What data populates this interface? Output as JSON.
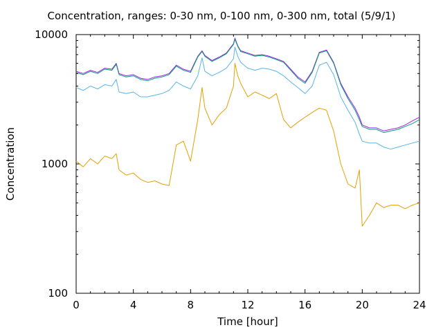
{
  "chart_data": {
    "type": "line",
    "title": "Concentration, ranges: 0-30 nm, 0-100 nm, 0-300 nm, total (5/9/1)",
    "xlabel": "Time [hour]",
    "ylabel": "Concentration",
    "xlim": [
      0,
      24
    ],
    "ylim": [
      100,
      10000
    ],
    "yscale": "log",
    "xticks": [
      "0",
      "4",
      "8",
      "12",
      "16",
      "20",
      "24"
    ],
    "yticks": [
      "100",
      "1000",
      "10000"
    ],
    "grid": false,
    "legend": "none",
    "x": [
      0,
      0.5,
      1,
      1.5,
      2,
      2.5,
      2.8,
      3,
      3.5,
      4,
      4.5,
      5,
      5.5,
      6,
      6.5,
      7,
      7.5,
      8,
      8.5,
      8.8,
      9,
      9.5,
      10,
      10.5,
      11,
      11.1,
      11.3,
      11.5,
      12,
      12.5,
      13,
      13.5,
      14,
      14.5,
      15,
      15.5,
      16,
      16.5,
      17,
      17.5,
      18,
      18.5,
      19,
      19.5,
      19.8,
      20,
      20.5,
      21,
      21.5,
      22,
      22.5,
      23,
      23.5,
      24
    ],
    "series": [
      {
        "color": "#a020f0",
        "values": [
          5200,
          5000,
          5300,
          5100,
          5500,
          5400,
          6000,
          5000,
          4800,
          4900,
          4600,
          4500,
          4700,
          4800,
          5000,
          5800,
          5400,
          5200,
          6800,
          7500,
          6900,
          6300,
          6700,
          7200,
          8500,
          9400,
          8200,
          7500,
          7200,
          6900,
          7000,
          6800,
          6500,
          6200,
          5400,
          4700,
          4300,
          5200,
          7300,
          7600,
          6100,
          4200,
          3300,
          2700,
          2300,
          2000,
          1900,
          1900,
          1800,
          1850,
          1900,
          2000,
          2150,
          2300
        ]
      },
      {
        "color": "#009e73",
        "values": [
          5100,
          4900,
          5200,
          5000,
          5400,
          5300,
          5900,
          4900,
          4700,
          4800,
          4500,
          4400,
          4600,
          4700,
          4900,
          5700,
          5300,
          5100,
          6700,
          7400,
          6800,
          6200,
          6600,
          7100,
          8400,
          9200,
          8100,
          7400,
          7100,
          6800,
          6900,
          6700,
          6400,
          6100,
          5300,
          4600,
          4200,
          5100,
          7200,
          7500,
          6000,
          4100,
          3200,
          2600,
          2200,
          1950,
          1850,
          1850,
          1750,
          1800,
          1850,
          1950,
          2050,
          2200
        ]
      },
      {
        "color": "#56b4e9",
        "values": [
          3900,
          3700,
          4000,
          3800,
          4100,
          4000,
          4500,
          3600,
          3500,
          3600,
          3300,
          3300,
          3400,
          3500,
          3700,
          4300,
          4000,
          3800,
          4800,
          6600,
          5200,
          4800,
          5100,
          5500,
          6500,
          8000,
          6800,
          6100,
          5500,
          5300,
          5500,
          5400,
          5200,
          4800,
          4300,
          3900,
          3500,
          4000,
          5800,
          6100,
          4900,
          3300,
          2600,
          2100,
          1700,
          1500,
          1450,
          1450,
          1350,
          1300,
          1350,
          1400,
          1450,
          1500
        ]
      },
      {
        "color": "#e69f00",
        "values": [
          1050,
          950,
          1100,
          1000,
          1150,
          1100,
          1200,
          900,
          820,
          850,
          760,
          720,
          740,
          700,
          680,
          1400,
          1500,
          1050,
          2200,
          3900,
          2700,
          2000,
          2400,
          2700,
          4000,
          6000,
          4800,
          4200,
          3300,
          3600,
          3400,
          3200,
          3500,
          2200,
          1900,
          2100,
          2300,
          2500,
          2700,
          2600,
          1800,
          1000,
          700,
          650,
          900,
          330,
          400,
          500,
          460,
          480,
          480,
          450,
          480,
          500
        ]
      }
    ]
  }
}
